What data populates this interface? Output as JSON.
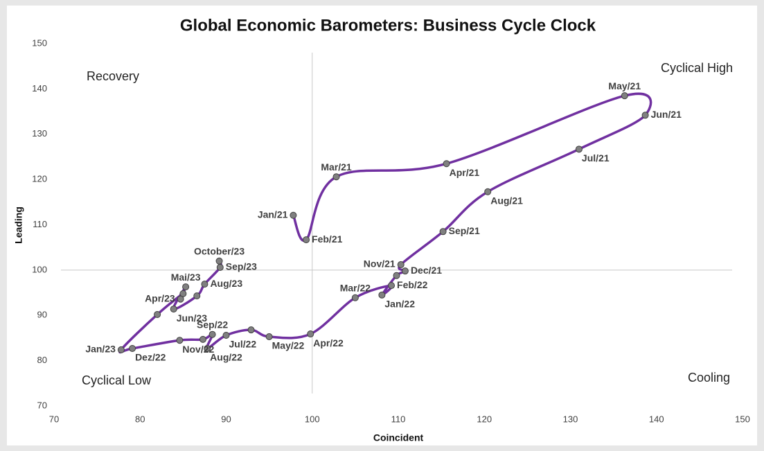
{
  "chart_data": {
    "type": "connected-scatter",
    "title": "Global Economic Barometers: Business Cycle Clock",
    "x_label": "Coincident",
    "y_label": "Leading",
    "xlim": [
      70,
      150
    ],
    "ylim": [
      70,
      150
    ],
    "xticks": [
      70,
      80,
      90,
      100,
      110,
      120,
      130,
      140,
      150
    ],
    "yticks": [
      70,
      80,
      90,
      100,
      110,
      120,
      130,
      140,
      150
    ],
    "reference_lines": {
      "x": 100,
      "y": 100
    },
    "line_color": "#7030a0",
    "marker_color": "#808080",
    "quadrants": [
      {
        "text": "Recovery",
        "corner": "top-left"
      },
      {
        "text": "Cyclical High",
        "corner": "top-right"
      },
      {
        "text": "Cyclical Low",
        "corner": "bottom-left"
      },
      {
        "text": "Cooling",
        "corner": "bottom-right"
      }
    ],
    "points": [
      {
        "label": "Jan/21",
        "x": 97.8,
        "y": 112.1,
        "label_position": "left"
      },
      {
        "label": "Feb/21",
        "x": 99.3,
        "y": 106.7,
        "label_position": "right"
      },
      {
        "label": "Mar/21",
        "x": 102.8,
        "y": 120.6,
        "label_position": "above"
      },
      {
        "label": "Apr/21",
        "x": 115.6,
        "y": 123.5,
        "label_position": "below"
      },
      {
        "label": "May/21",
        "x": 136.3,
        "y": 138.5,
        "label_position": "above"
      },
      {
        "label": "Jun/21",
        "x": 138.7,
        "y": 134.2,
        "label_position": "right"
      },
      {
        "label": "Jul/21",
        "x": 131.0,
        "y": 126.7,
        "label_position": "below"
      },
      {
        "label": "Aug/21",
        "x": 120.4,
        "y": 117.3,
        "label_position": "below"
      },
      {
        "label": "Sep/21",
        "x": 115.2,
        "y": 108.5,
        "label_position": "right"
      },
      {
        "label": "Nov/21",
        "x": 110.3,
        "y": 101.2,
        "label_position": "left"
      },
      {
        "label": "Dec/21",
        "x": 110.8,
        "y": 99.8,
        "label_position": "right"
      },
      {
        "label": null,
        "x": 109.8,
        "y": 98.8,
        "label_position": "left"
      },
      {
        "label": "Jan/22",
        "x": 108.1,
        "y": 94.5,
        "label_position": "below"
      },
      {
        "label": "Feb/22",
        "x": 109.2,
        "y": 96.6,
        "label_position": "right"
      },
      {
        "label": "Mar/22",
        "x": 105.0,
        "y": 93.9,
        "label_position": "above"
      },
      {
        "label": "Apr/22",
        "x": 99.8,
        "y": 85.9,
        "label_position": "below"
      },
      {
        "label": "May/22",
        "x": 95.0,
        "y": 85.3,
        "label_position": "below"
      },
      {
        "label": null,
        "x": 92.9,
        "y": 86.8,
        "label_position": "above"
      },
      {
        "label": "Jul/22",
        "x": 90.0,
        "y": 85.6,
        "label_position": "below"
      },
      {
        "label": "Aug/22",
        "x": 87.8,
        "y": 82.7,
        "label_position": "below"
      },
      {
        "label": "Sep/22",
        "x": 88.4,
        "y": 85.8,
        "label_position": "above"
      },
      {
        "label": null,
        "x": 87.3,
        "y": 84.7,
        "label_position": "above"
      },
      {
        "label": "Nov/22",
        "x": 84.6,
        "y": 84.5,
        "label_position": "below"
      },
      {
        "label": "Dez/22",
        "x": 79.1,
        "y": 82.7,
        "label_position": "below"
      },
      {
        "label": "Jan/23",
        "x": 77.8,
        "y": 82.4,
        "label_position": "left"
      },
      {
        "label": null,
        "x": 82.0,
        "y": 90.2,
        "label_position": "left"
      },
      {
        "label": null,
        "x": 85.0,
        "y": 94.8,
        "label_position": "left"
      },
      {
        "label": "Apr/23",
        "x": 84.7,
        "y": 93.6,
        "label_position": "left"
      },
      {
        "label": "Mai/23",
        "x": 85.3,
        "y": 96.3,
        "label_position": "above"
      },
      {
        "label": "Jun/23",
        "x": 83.9,
        "y": 91.4,
        "label_position": "below"
      },
      {
        "label": null,
        "x": 86.6,
        "y": 94.3,
        "label_position": "right"
      },
      {
        "label": "Aug/23",
        "x": 87.5,
        "y": 96.9,
        "label_position": "right"
      },
      {
        "label": "Sep/23",
        "x": 89.3,
        "y": 100.6,
        "label_position": "right"
      },
      {
        "label": "October/23",
        "x": 89.2,
        "y": 102.0,
        "label_position": "above"
      }
    ]
  }
}
